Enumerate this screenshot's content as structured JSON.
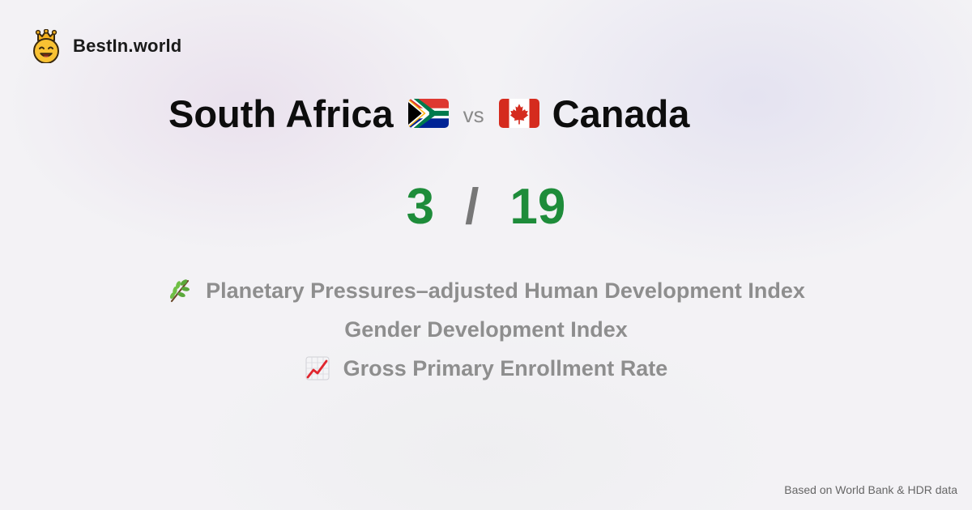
{
  "brand": {
    "name": "BestIn.world",
    "logo_icon": "crowned-smiley-icon"
  },
  "comparison": {
    "country_a": "South Africa",
    "flag_a": "south-africa-flag-icon",
    "vs_label": "vs",
    "country_b": "Canada",
    "flag_b": "canada-flag-icon"
  },
  "score": {
    "a": "3",
    "separator": "/",
    "b": "19",
    "color": "#1e8c3a"
  },
  "metrics": [
    {
      "label": "Planetary Pressures–adjusted Human Development Index",
      "icon": "herb-icon"
    },
    {
      "label": "Gender Development Index",
      "icon": ""
    },
    {
      "label": "Gross Primary Enrollment Rate",
      "icon": "chart-increasing-icon"
    }
  ],
  "footer": {
    "text": "Based on World Bank & HDR data"
  }
}
